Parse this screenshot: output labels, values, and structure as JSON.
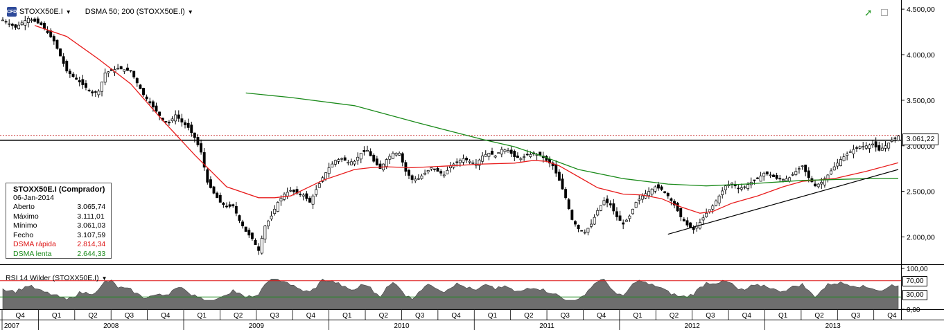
{
  "header": {
    "symbol": "STOXX50E.I",
    "indicator": "DSMA 50; 200 (STOXX50E.I)",
    "logo_text": "CFD"
  },
  "info_panel": {
    "title": "STOXX50E.I (Comprador)",
    "date": "06-Jan-2014",
    "rows": [
      {
        "label": "Aberto",
        "value": "3.065,74"
      },
      {
        "label": "Máximo",
        "value": "3.111,01"
      },
      {
        "label": "Mínimo",
        "value": "3.061,03"
      },
      {
        "label": "Fecho",
        "value": "3.107,59"
      },
      {
        "label": "DSMA rápida",
        "value": "2.814,34"
      },
      {
        "label": "DSMA lenta",
        "value": "2.644,33"
      }
    ]
  },
  "price_label": "3.061,22",
  "rsi": {
    "header": "RSI 14 Wilder (STOXX50E.I)",
    "upper_label": "70,00",
    "lower_label": "30,00",
    "axis_labels": [
      "100,00",
      "0,00"
    ]
  },
  "colors": {
    "fast_ma": "#e81c1c",
    "slow_ma": "#1a8a1a",
    "candle": "#000000",
    "rsi_fill": "#6e6e6e"
  },
  "chart_data": {
    "type": "candlestick",
    "title": "STOXX50E.I",
    "ylim": [
      1700,
      4600
    ],
    "y_ticks": [
      "4.500,00",
      "4.000,00",
      "3.500,00",
      "3.000,00",
      "2.500,00",
      "2.000,00"
    ],
    "y_tick_values": [
      4500,
      4000,
      3500,
      3000,
      2500,
      2000
    ],
    "x_quarters": [
      "Q4",
      "Q1",
      "Q2",
      "Q3",
      "Q4",
      "Q1",
      "Q2",
      "Q3",
      "Q4",
      "Q1",
      "Q2",
      "Q3",
      "Q4",
      "Q1",
      "Q2",
      "Q3",
      "Q4",
      "Q1",
      "Q2",
      "Q3",
      "Q4",
      "Q1",
      "Q2",
      "Q3",
      "Q4"
    ],
    "x_years": [
      "2007",
      "2008",
      "2009",
      "2010",
      "2011",
      "2012",
      "2013"
    ],
    "close_path": [
      [
        0,
        4380
      ],
      [
        4,
        4300
      ],
      [
        8,
        4400
      ],
      [
        12,
        4330
      ],
      [
        16,
        4150
      ],
      [
        20,
        3820
      ],
      [
        24,
        3700
      ],
      [
        28,
        3580
      ],
      [
        30,
        3600
      ],
      [
        32,
        3800
      ],
      [
        36,
        3850
      ],
      [
        40,
        3820
      ],
      [
        44,
        3560
      ],
      [
        48,
        3380
      ],
      [
        50,
        3280
      ],
      [
        52,
        3250
      ],
      [
        54,
        3340
      ],
      [
        56,
        3260
      ],
      [
        58,
        3200
      ],
      [
        60,
        3090
      ],
      [
        62,
        2930
      ],
      [
        64,
        2600
      ],
      [
        66,
        2480
      ],
      [
        68,
        2380
      ],
      [
        70,
        2330
      ],
      [
        72,
        2340
      ],
      [
        74,
        2180
      ],
      [
        76,
        2060
      ],
      [
        78,
        1980
      ],
      [
        80,
        1850
      ],
      [
        82,
        2120
      ],
      [
        84,
        2230
      ],
      [
        86,
        2380
      ],
      [
        88,
        2470
      ],
      [
        90,
        2510
      ],
      [
        92,
        2480
      ],
      [
        94,
        2460
      ],
      [
        96,
        2380
      ],
      [
        98,
        2520
      ],
      [
        100,
        2650
      ],
      [
        102,
        2760
      ],
      [
        104,
        2840
      ],
      [
        106,
        2860
      ],
      [
        108,
        2820
      ],
      [
        110,
        2830
      ],
      [
        112,
        2920
      ],
      [
        114,
        2950
      ],
      [
        116,
        2830
      ],
      [
        118,
        2750
      ],
      [
        120,
        2850
      ],
      [
        122,
        2920
      ],
      [
        124,
        2920
      ],
      [
        126,
        2720
      ],
      [
        128,
        2630
      ],
      [
        130,
        2640
      ],
      [
        132,
        2700
      ],
      [
        134,
        2760
      ],
      [
        136,
        2720
      ],
      [
        138,
        2680
      ],
      [
        140,
        2780
      ],
      [
        142,
        2820
      ],
      [
        144,
        2860
      ],
      [
        146,
        2830
      ],
      [
        148,
        2800
      ],
      [
        150,
        2890
      ],
      [
        152,
        2920
      ],
      [
        154,
        2890
      ],
      [
        156,
        2960
      ],
      [
        158,
        2950
      ],
      [
        160,
        2880
      ],
      [
        162,
        2860
      ],
      [
        164,
        2900
      ],
      [
        166,
        2910
      ],
      [
        168,
        2900
      ],
      [
        170,
        2840
      ],
      [
        172,
        2780
      ],
      [
        174,
        2620
      ],
      [
        176,
        2430
      ],
      [
        178,
        2190
      ],
      [
        180,
        2090
      ],
      [
        182,
        2050
      ],
      [
        184,
        2140
      ],
      [
        186,
        2290
      ],
      [
        188,
        2400
      ],
      [
        190,
        2350
      ],
      [
        192,
        2220
      ],
      [
        194,
        2140
      ],
      [
        196,
        2230
      ],
      [
        198,
        2380
      ],
      [
        200,
        2450
      ],
      [
        202,
        2500
      ],
      [
        204,
        2550
      ],
      [
        206,
        2520
      ],
      [
        208,
        2450
      ],
      [
        210,
        2350
      ],
      [
        212,
        2220
      ],
      [
        214,
        2130
      ],
      [
        216,
        2080
      ],
      [
        218,
        2160
      ],
      [
        220,
        2260
      ],
      [
        222,
        2340
      ],
      [
        224,
        2450
      ],
      [
        226,
        2560
      ],
      [
        228,
        2590
      ],
      [
        230,
        2530
      ],
      [
        232,
        2550
      ],
      [
        234,
        2600
      ],
      [
        236,
        2640
      ],
      [
        238,
        2700
      ],
      [
        240,
        2680
      ],
      [
        242,
        2640
      ],
      [
        244,
        2630
      ],
      [
        246,
        2650
      ],
      [
        248,
        2720
      ],
      [
        250,
        2780
      ],
      [
        252,
        2650
      ],
      [
        254,
        2560
      ],
      [
        256,
        2600
      ],
      [
        258,
        2680
      ],
      [
        260,
        2770
      ],
      [
        262,
        2850
      ],
      [
        264,
        2910
      ],
      [
        266,
        2960
      ],
      [
        268,
        2990
      ],
      [
        270,
        3000
      ],
      [
        272,
        3020
      ],
      [
        274,
        2950
      ],
      [
        276,
        3000
      ],
      [
        278,
        3060
      ],
      [
        280,
        3107
      ]
    ],
    "series": [
      {
        "name": "DSMA rápida",
        "path": [
          [
            10,
            4320
          ],
          [
            20,
            4200
          ],
          [
            30,
            3950
          ],
          [
            40,
            3680
          ],
          [
            50,
            3280
          ],
          [
            60,
            2900
          ],
          [
            70,
            2550
          ],
          [
            80,
            2430
          ],
          [
            85,
            2430
          ],
          [
            90,
            2450
          ],
          [
            100,
            2620
          ],
          [
            110,
            2740
          ],
          [
            115,
            2760
          ],
          [
            120,
            2770
          ],
          [
            128,
            2760
          ],
          [
            140,
            2780
          ],
          [
            150,
            2800
          ],
          [
            160,
            2810
          ],
          [
            166,
            2840
          ],
          [
            170,
            2830
          ],
          [
            174,
            2780
          ],
          [
            180,
            2660
          ],
          [
            186,
            2540
          ],
          [
            194,
            2470
          ],
          [
            200,
            2460
          ],
          [
            206,
            2420
          ],
          [
            212,
            2330
          ],
          [
            218,
            2260
          ],
          [
            222,
            2280
          ],
          [
            228,
            2370
          ],
          [
            236,
            2450
          ],
          [
            244,
            2550
          ],
          [
            250,
            2610
          ],
          [
            260,
            2640
          ],
          [
            270,
            2720
          ],
          [
            280,
            2814
          ]
        ]
      },
      {
        "name": "DSMA lenta",
        "path": [
          [
            76,
            3580
          ],
          [
            90,
            3530
          ],
          [
            110,
            3440
          ],
          [
            130,
            3250
          ],
          [
            150,
            3070
          ],
          [
            160,
            2990
          ],
          [
            170,
            2870
          ],
          [
            180,
            2740
          ],
          [
            194,
            2640
          ],
          [
            208,
            2580
          ],
          [
            220,
            2560
          ],
          [
            232,
            2580
          ],
          [
            250,
            2620
          ],
          [
            270,
            2640
          ],
          [
            280,
            2644
          ]
        ]
      }
    ],
    "reference_line": 3061.22,
    "trendline": [
      [
        208,
        2030
      ],
      [
        280,
        2740
      ]
    ]
  }
}
